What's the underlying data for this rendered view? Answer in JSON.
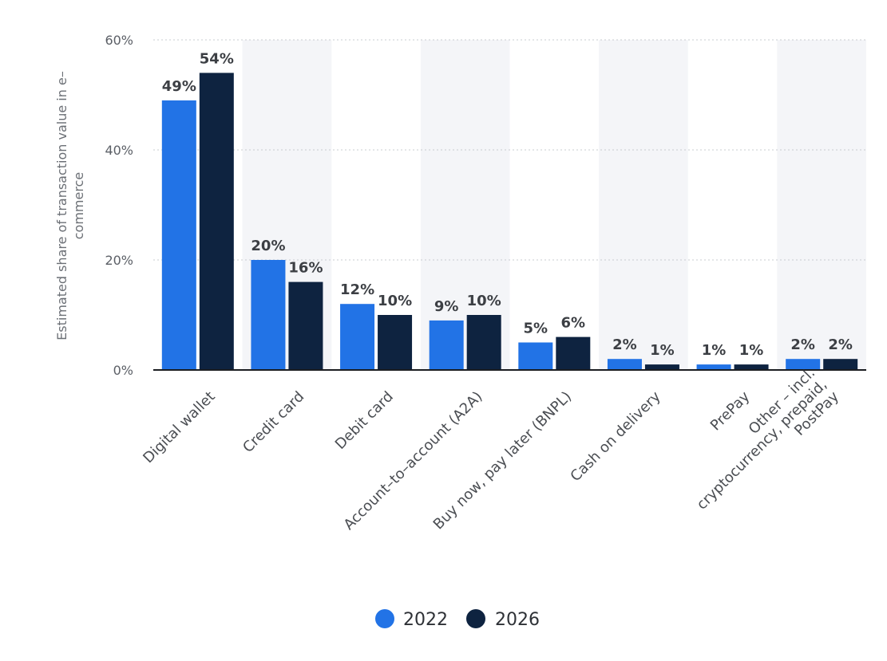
{
  "chart_data": {
    "type": "bar",
    "title": "",
    "xlabel": "",
    "ylabel": "Estimated share of transaction value in e-commerce",
    "ylabel_lines": [
      "Estimated share of transaction value in e–",
      "commerce"
    ],
    "ylim": [
      0,
      60
    ],
    "yticks": [
      {
        "value": 0,
        "label": "0%"
      },
      {
        "value": 20,
        "label": "20%"
      },
      {
        "value": 40,
        "label": "40%"
      },
      {
        "value": 60,
        "label": "60%"
      }
    ],
    "grid": true,
    "legend_position": "bottom-center",
    "categories": [
      "Digital wallet",
      "Credit card",
      "Debit card",
      "Account-to-account (A2A)",
      "Buy now, pay later (BNPL)",
      "Cash on delivery",
      "PrePay",
      "Other – incl. cryptocurrency, prepaid, PostPay"
    ],
    "category_lines": [
      [
        "Digital wallet"
      ],
      [
        "Credit card"
      ],
      [
        "Debit card"
      ],
      [
        "Account–to–account (A2A)"
      ],
      [
        "Buy now, pay later (BNPL)"
      ],
      [
        "Cash on delivery"
      ],
      [
        "PrePay"
      ],
      [
        "Other – incl.",
        "cryptocurrency, prepaid,",
        "PostPay"
      ]
    ],
    "series": [
      {
        "name": "2022",
        "color": "#2273e6",
        "values": [
          49,
          20,
          12,
          9,
          5,
          2,
          1,
          2
        ],
        "labels": [
          "49%",
          "20%",
          "12%",
          "9%",
          "5%",
          "2%",
          "1%",
          "2%"
        ]
      },
      {
        "name": "2026",
        "color": "#0e2340",
        "values": [
          54,
          16,
          10,
          10,
          6,
          1,
          1,
          2
        ],
        "labels": [
          "54%",
          "16%",
          "10%",
          "10%",
          "6%",
          "1%",
          "1%",
          "2%"
        ]
      }
    ]
  }
}
